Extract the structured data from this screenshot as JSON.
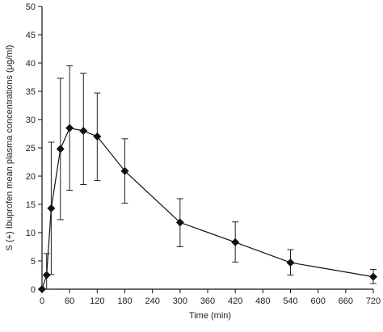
{
  "chart_data": {
    "type": "line",
    "title": "",
    "xlabel": "Time (min)",
    "ylabel": "S (+) Ibuprofen mean plasma concentrations (μg/ml)",
    "xlim": [
      0,
      720
    ],
    "ylim": [
      0,
      50
    ],
    "xticks": [
      0,
      60,
      120,
      180,
      240,
      300,
      360,
      420,
      480,
      540,
      600,
      660,
      720
    ],
    "yticks": [
      0,
      5,
      10,
      15,
      20,
      25,
      30,
      35,
      40,
      45,
      50
    ],
    "xtick_labels": [
      "0",
      "60",
      "120",
      "180",
      "240",
      "300",
      "360",
      "420",
      "480",
      "540",
      "600",
      "660",
      "720"
    ],
    "ytick_labels": [
      "0",
      "5",
      "10",
      "15",
      "20",
      "25",
      "30",
      "35",
      "40",
      "45",
      "50"
    ],
    "grid": false,
    "series": [
      {
        "x": [
          0,
          10,
          20,
          40,
          60,
          90,
          120,
          180,
          300,
          420,
          540,
          720
        ],
        "y": [
          0,
          2.5,
          14.3,
          24.8,
          28.5,
          28.0,
          27.0,
          20.9,
          11.8,
          8.3,
          4.7,
          2.2
        ],
        "err_low": [
          0,
          2.5,
          11.7,
          12.5,
          11.0,
          9.5,
          7.8,
          5.7,
          4.3,
          3.5,
          2.2,
          1.2
        ],
        "err_high": [
          0,
          3.8,
          11.7,
          12.5,
          11.0,
          10.2,
          7.7,
          5.7,
          4.2,
          3.6,
          2.3,
          1.3
        ]
      }
    ]
  }
}
